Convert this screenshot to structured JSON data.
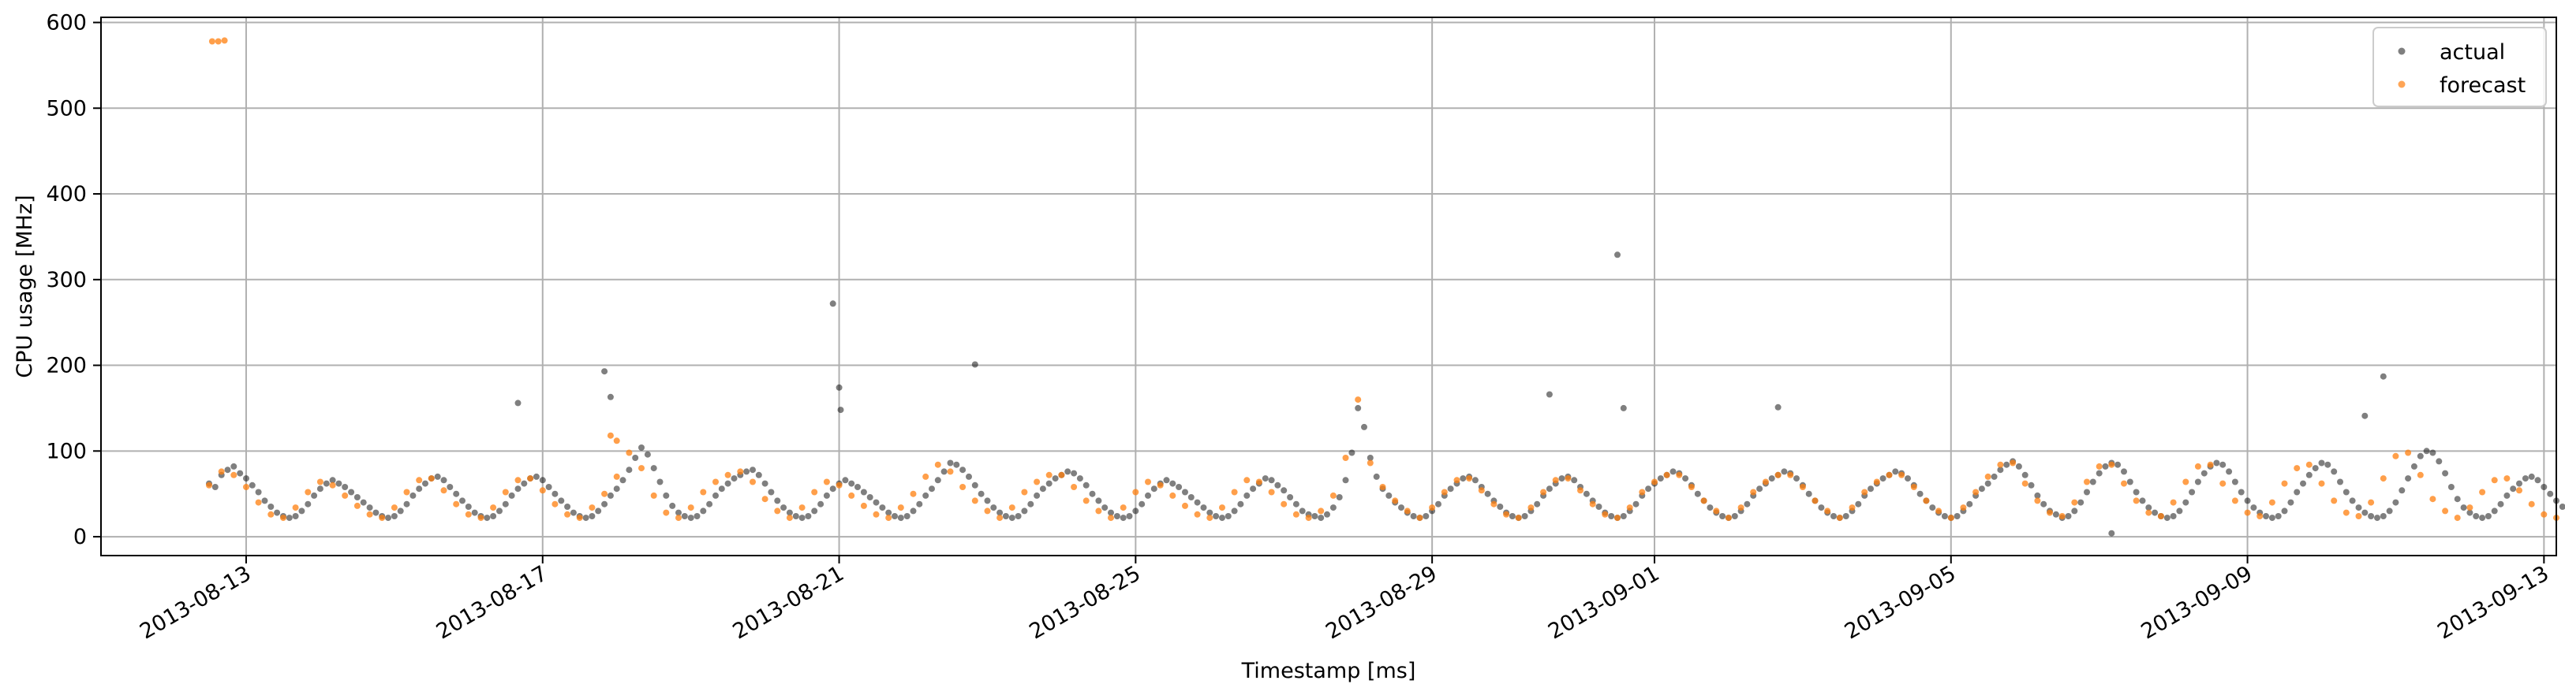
{
  "chart_data": {
    "type": "scatter",
    "xlabel": "Timestamp [ms]",
    "ylabel": "CPU usage [MHz]",
    "xlim": [
      "2013-08-11T01:00",
      "2013-09-13T04:00"
    ],
    "ylim": [
      -22,
      606
    ],
    "grid": true,
    "legend_position": "top-right",
    "x_ticks": [
      "2013-08-13",
      "2013-08-17",
      "2013-08-21",
      "2013-08-25",
      "2013-08-29",
      "2013-09-01",
      "2013-09-05",
      "2013-09-09",
      "2013-09-13"
    ],
    "y_ticks": [
      0,
      100,
      200,
      300,
      400,
      500,
      600
    ],
    "series": [
      {
        "name": "actual",
        "color": "#000000",
        "x_start": "2013-08-12T12:00",
        "x_end": "2013-09-11T12:00",
        "x_step_hours": 2,
        "values": [
          62,
          58,
          72,
          78,
          82,
          74,
          68,
          60,
          52,
          42,
          35,
          28,
          24,
          22,
          24,
          30,
          38,
          48,
          56,
          62,
          66,
          62,
          58,
          52,
          46,
          40,
          34,
          28,
          24,
          22,
          24,
          30,
          38,
          48,
          56,
          62,
          68,
          70,
          66,
          58,
          50,
          42,
          35,
          28,
          24,
          22,
          24,
          30,
          38,
          48,
          56,
          62,
          68,
          70,
          66,
          58,
          50,
          42,
          35,
          28,
          24,
          22,
          24,
          30,
          38,
          48,
          56,
          66,
          78,
          92,
          104,
          96,
          80,
          64,
          48,
          36,
          28,
          24,
          22,
          24,
          30,
          38,
          48,
          56,
          62,
          68,
          72,
          76,
          78,
          72,
          62,
          52,
          42,
          34,
          28,
          24,
          22,
          24,
          30,
          38,
          48,
          56,
          62,
          66,
          62,
          58,
          52,
          46,
          40,
          34,
          28,
          24,
          22,
          24,
          30,
          38,
          48,
          56,
          66,
          76,
          86,
          84,
          78,
          70,
          60,
          50,
          42,
          34,
          28,
          24,
          22,
          24,
          30,
          38,
          48,
          56,
          62,
          68,
          72,
          76,
          74,
          68,
          60,
          50,
          42,
          34,
          28,
          24,
          22,
          24,
          30,
          38,
          48,
          56,
          62,
          66,
          62,
          58,
          52,
          46,
          40,
          34,
          28,
          24,
          22,
          24,
          30,
          38,
          48,
          56,
          62,
          68,
          66,
          60,
          54,
          46,
          38,
          30,
          26,
          24,
          22,
          26,
          34,
          46,
          66,
          98,
          150,
          128,
          92,
          70,
          56,
          48,
          40,
          34,
          28,
          24,
          22,
          24,
          30,
          38,
          48,
          56,
          62,
          68,
          70,
          66,
          58,
          50,
          42,
          35,
          28,
          24,
          22,
          24,
          30,
          38,
          48,
          56,
          62,
          68,
          70,
          66,
          58,
          50,
          42,
          35,
          28,
          24,
          22,
          24,
          30,
          38,
          48,
          56,
          62,
          68,
          72,
          76,
          74,
          68,
          60,
          50,
          42,
          34,
          28,
          24,
          22,
          24,
          30,
          38,
          48,
          56,
          62,
          68,
          72,
          76,
          74,
          68,
          60,
          50,
          42,
          34,
          28,
          24,
          22,
          24,
          30,
          38,
          48,
          56,
          62,
          68,
          72,
          76,
          74,
          68,
          60,
          50,
          42,
          34,
          28,
          24,
          22,
          24,
          30,
          38,
          48,
          56,
          62,
          70,
          78,
          84,
          88,
          82,
          72,
          60,
          48,
          38,
          30,
          26,
          22,
          24,
          30,
          40,
          52,
          64,
          74,
          82,
          86,
          84,
          76,
          64,
          52,
          42,
          34,
          28,
          24,
          22,
          24,
          30,
          40,
          52,
          64,
          74,
          82,
          86,
          84,
          76,
          64,
          52,
          42,
          34,
          28,
          24,
          22,
          24,
          30,
          40,
          52,
          62,
          72,
          80,
          86,
          84,
          76,
          64,
          52,
          42,
          34,
          28,
          24,
          22,
          24,
          30,
          40,
          54,
          68,
          82,
          94,
          100,
          98,
          88,
          74,
          58,
          44,
          34,
          28,
          24,
          22,
          24,
          30,
          38,
          48,
          56,
          62,
          68,
          70,
          66,
          58,
          50,
          42,
          35,
          28,
          24,
          22,
          24,
          30,
          38,
          48,
          56,
          62,
          68,
          70,
          66,
          58,
          50,
          42,
          35,
          28,
          24,
          22,
          24,
          30,
          38,
          48,
          56,
          62,
          68,
          72,
          74,
          68,
          60,
          50,
          42,
          34,
          28,
          24,
          22,
          24,
          30,
          38,
          48,
          56,
          62,
          68,
          72,
          74,
          68,
          60,
          50,
          42,
          34,
          28,
          24,
          22,
          24,
          30,
          38,
          48,
          56,
          62,
          66,
          62,
          56,
          50,
          44,
          38,
          32,
          28,
          24,
          22,
          24,
          30,
          38,
          48,
          56,
          62,
          66,
          62,
          56,
          50,
          44,
          38,
          32,
          28,
          24,
          22,
          24,
          30,
          38,
          48,
          56,
          62,
          66,
          70,
          74,
          76,
          72,
          64,
          54,
          44,
          36,
          30,
          26,
          22,
          24,
          30,
          40,
          52,
          64,
          74,
          82,
          86,
          84,
          76,
          64,
          52,
          42,
          34,
          28,
          24,
          22,
          24,
          30,
          38,
          48,
          56,
          62,
          68,
          72,
          74,
          68,
          60,
          50,
          42,
          34,
          28,
          24,
          22,
          24,
          30,
          38,
          48,
          56,
          62,
          68,
          70,
          66,
          58,
          50,
          42,
          35,
          28,
          24,
          22,
          24,
          30,
          38,
          48,
          56,
          62,
          68,
          70,
          66,
          58,
          50,
          42,
          35,
          28,
          24,
          22,
          24,
          30,
          40,
          52,
          62,
          70,
          76,
          80,
          78,
          70,
          60,
          50,
          42,
          34,
          28,
          24,
          22,
          24,
          30,
          38,
          48,
          56,
          62,
          70,
          78,
          86,
          90,
          84,
          72,
          58,
          46,
          36,
          28,
          24,
          22,
          24,
          30,
          38,
          48,
          56,
          62,
          68,
          72,
          74,
          68,
          60,
          50,
          42,
          34,
          28,
          24,
          22,
          24,
          30,
          38,
          48,
          56,
          62,
          68,
          72,
          74,
          68,
          60,
          50,
          42,
          34,
          28,
          24,
          22,
          24,
          30,
          38,
          48,
          56,
          62,
          66,
          62,
          56,
          50,
          44,
          38,
          32,
          28,
          24,
          22,
          24,
          30,
          38,
          48,
          56,
          62,
          66,
          62,
          56,
          50,
          44,
          38,
          32,
          28,
          24,
          22,
          24,
          30,
          38,
          48,
          56,
          62,
          66,
          62
        ],
        "outliers": [
          {
            "x": "2013-08-16T16:00",
            "y": 156
          },
          {
            "x": "2013-08-17T20:00",
            "y": 193
          },
          {
            "x": "2013-08-17T22:00",
            "y": 163
          },
          {
            "x": "2013-08-20T22:00",
            "y": 272
          },
          {
            "x": "2013-08-21T00:00",
            "y": 174
          },
          {
            "x": "2013-08-21T00:30",
            "y": 148
          },
          {
            "x": "2013-08-22T20:00",
            "y": 201
          },
          {
            "x": "2013-08-30T14:00",
            "y": 166
          },
          {
            "x": "2013-08-31T12:00",
            "y": 329
          },
          {
            "x": "2013-08-31T14:00",
            "y": 150
          },
          {
            "x": "2013-09-02T16:00",
            "y": 151
          },
          {
            "x": "2013-09-07T04:00",
            "y": 4
          },
          {
            "x": "2013-09-10T14:00",
            "y": 141
          },
          {
            "x": "2013-09-10T20:00",
            "y": 187
          }
        ]
      },
      {
        "name": "forecast",
        "color": "#ff7f0e",
        "x_start": "2013-08-12T12:00",
        "x_end": "2013-09-11T12:00",
        "x_step_hours": 4,
        "values": [
          60,
          76,
          72,
          58,
          40,
          26,
          22,
          34,
          52,
          64,
          60,
          48,
          36,
          26,
          22,
          34,
          52,
          66,
          68,
          54,
          38,
          26,
          22,
          34,
          52,
          66,
          68,
          54,
          38,
          26,
          22,
          34,
          50,
          70,
          98,
          80,
          48,
          28,
          22,
          34,
          52,
          64,
          72,
          76,
          64,
          44,
          30,
          22,
          34,
          52,
          64,
          60,
          48,
          36,
          26,
          22,
          34,
          50,
          70,
          84,
          76,
          58,
          42,
          30,
          22,
          34,
          52,
          64,
          72,
          72,
          58,
          42,
          30,
          22,
          34,
          52,
          64,
          60,
          48,
          36,
          26,
          22,
          34,
          52,
          66,
          64,
          52,
          38,
          26,
          22,
          30,
          48,
          92,
          160,
          86,
          58,
          42,
          30,
          22,
          34,
          52,
          66,
          68,
          54,
          38,
          26,
          22,
          34,
          52,
          66,
          68,
          54,
          38,
          26,
          22,
          34,
          52,
          64,
          72,
          72,
          58,
          42,
          30,
          22,
          34,
          52,
          64,
          72,
          72,
          58,
          42,
          30,
          22,
          34,
          52,
          64,
          72,
          72,
          58,
          42,
          30,
          22,
          34,
          52,
          70,
          84,
          86,
          62,
          42,
          28,
          24,
          40,
          64,
          82,
          84,
          62,
          42,
          28,
          24,
          40,
          64,
          82,
          84,
          62,
          42,
          28,
          24,
          40,
          62,
          80,
          84,
          62,
          42,
          28,
          24,
          40,
          68,
          94,
          98,
          72,
          44,
          30,
          22,
          34,
          52,
          66,
          68,
          54,
          38,
          26,
          22,
          34,
          52,
          66,
          68,
          54,
          38,
          26,
          22,
          34,
          52,
          64,
          72,
          68,
          52,
          38,
          26,
          22,
          34,
          52,
          64,
          72,
          68,
          52,
          38,
          26,
          22,
          34,
          52,
          64,
          60,
          50,
          38,
          28,
          22,
          34,
          52,
          64,
          60,
          50,
          38,
          28,
          22,
          34,
          52,
          64,
          70,
          76,
          64,
          44,
          30,
          24,
          40,
          64,
          82,
          84,
          62,
          42,
          28,
          24,
          34,
          52,
          64,
          72,
          68,
          52,
          38,
          26,
          22,
          34,
          52,
          66,
          68,
          54,
          38,
          26,
          22,
          34,
          52,
          66,
          68,
          54,
          38,
          26,
          24,
          40,
          62,
          76,
          78,
          60,
          42,
          28,
          24,
          34,
          52,
          62,
          78,
          90,
          74,
          48,
          30,
          22,
          34,
          52,
          64,
          72,
          68,
          52,
          38,
          26,
          22,
          34,
          52,
          64,
          72,
          68,
          52,
          38,
          26,
          22,
          34,
          52,
          64,
          60,
          50,
          38,
          28,
          22,
          34,
          52,
          64,
          60,
          50,
          38,
          28,
          22,
          34,
          52,
          64
        ],
        "outliers": [
          {
            "x": "2013-08-12T13:00",
            "y": 578
          },
          {
            "x": "2013-08-12T15:00",
            "y": 578
          },
          {
            "x": "2013-08-12T17:00",
            "y": 579
          },
          {
            "x": "2013-08-17T22:00",
            "y": 118
          },
          {
            "x": "2013-08-18T00:00",
            "y": 112
          }
        ]
      }
    ]
  }
}
